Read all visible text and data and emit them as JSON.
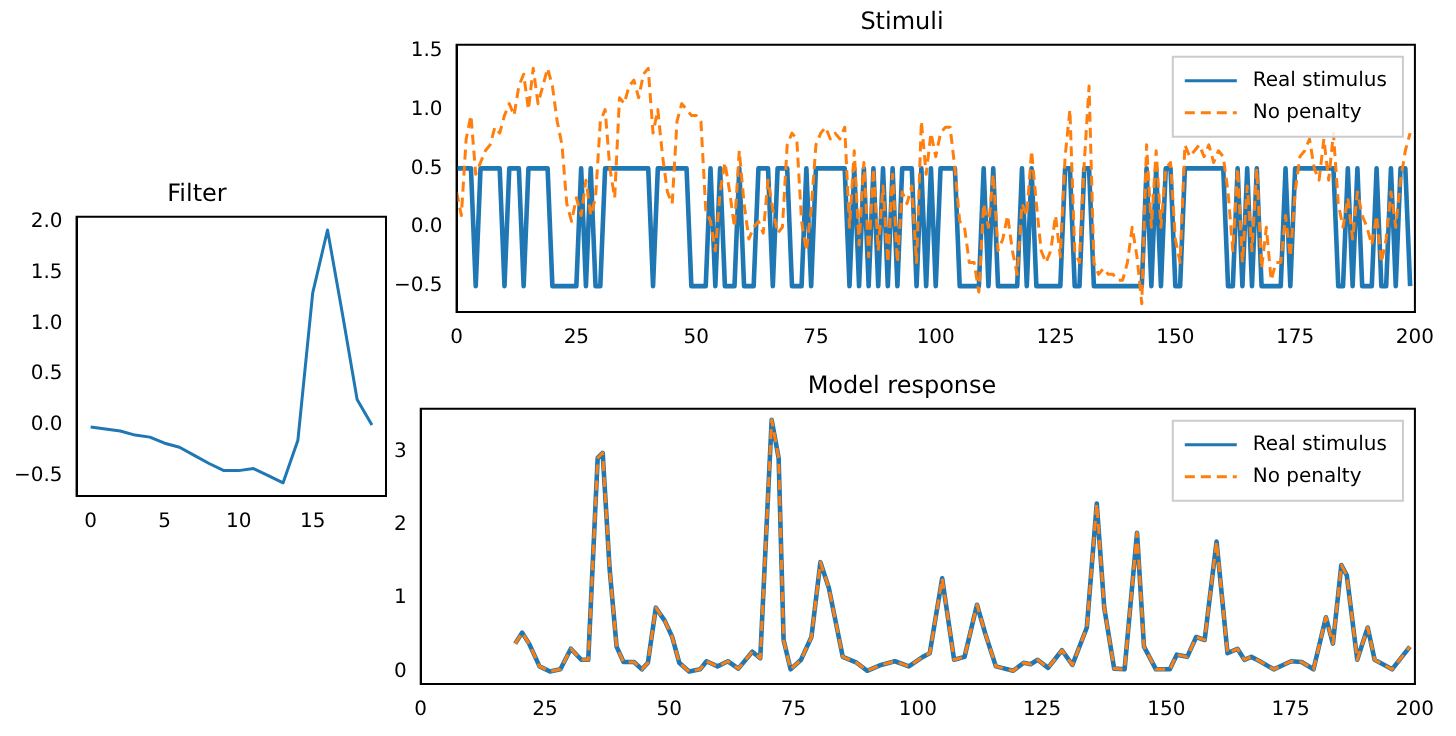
{
  "chart_data": [
    {
      "type": "line",
      "title": "Filter",
      "x": [
        0,
        1,
        2,
        3,
        4,
        5,
        6,
        7,
        8,
        9,
        10,
        11,
        12,
        13,
        14,
        15,
        16,
        17,
        18,
        19
      ],
      "series": [
        {
          "color": "#1f77b4",
          "values": [
            -0.02,
            -0.04,
            -0.06,
            -0.1,
            -0.12,
            -0.18,
            -0.22,
            -0.3,
            -0.38,
            -0.45,
            -0.45,
            -0.43,
            -0.5,
            -0.57,
            -0.15,
            1.3,
            1.92,
            1.1,
            0.25,
            0.0
          ]
        }
      ],
      "xlim": [
        -0.95,
        19.95
      ],
      "xticks": [
        0,
        5,
        10,
        15
      ],
      "ylim": [
        -0.7,
        2.05
      ],
      "yticks": [
        {
          "value": -0.5,
          "label": "−0.5"
        },
        {
          "value": 0,
          "label": "0.0"
        },
        {
          "value": 0.5,
          "label": "0.5"
        },
        {
          "value": 1,
          "label": "1.0"
        },
        {
          "value": 1.5,
          "label": "1.5"
        },
        {
          "value": 2,
          "label": "2.0"
        }
      ],
      "grid": false,
      "legend": false
    },
    {
      "type": "line",
      "title": "Stimuli",
      "legend": "top right",
      "grid": false,
      "x": [
        0,
        1,
        2,
        3,
        4,
        5,
        6,
        7,
        8,
        9,
        10,
        11,
        12,
        13,
        14,
        15,
        16,
        17,
        18,
        19,
        20,
        21,
        22,
        23,
        24,
        25,
        26,
        27,
        28,
        29,
        30,
        31,
        32,
        33,
        34,
        35,
        36,
        37,
        38,
        39,
        40,
        41,
        42,
        43,
        44,
        45,
        46,
        47,
        48,
        49,
        50,
        51,
        52,
        53,
        54,
        55,
        56,
        57,
        58,
        59,
        60,
        61,
        62,
        63,
        64,
        65,
        66,
        67,
        68,
        69,
        70,
        71,
        72,
        73,
        74,
        75,
        76,
        77,
        78,
        79,
        80,
        81,
        82,
        83,
        84,
        85,
        86,
        87,
        88,
        89,
        90,
        91,
        92,
        93,
        94,
        95,
        96,
        97,
        98,
        99,
        100,
        101,
        102,
        103,
        104,
        105,
        106,
        107,
        108,
        109,
        110,
        111,
        112,
        113,
        114,
        115,
        116,
        117,
        118,
        119,
        120,
        121,
        122,
        123,
        124,
        125,
        126,
        127,
        128,
        129,
        130,
        131,
        132,
        133,
        134,
        135,
        136,
        137,
        138,
        139,
        140,
        141,
        142,
        143,
        144,
        145,
        146,
        147,
        148,
        149,
        150,
        151,
        152,
        153,
        154,
        155,
        156,
        157,
        158,
        159,
        160,
        161,
        162,
        163,
        164,
        165,
        166,
        167,
        168,
        169,
        170,
        171,
        172,
        173,
        174,
        175,
        176,
        177,
        178,
        179,
        180,
        181,
        182,
        183,
        184,
        185,
        186,
        187,
        188,
        189,
        190,
        191,
        192,
        193,
        194,
        195,
        196,
        197,
        198,
        199
      ],
      "series": [
        {
          "name": "Real stimulus",
          "color": "#1f77b4",
          "line_style": "solid",
          "values": [
            0.5,
            0.5,
            0.5,
            0.5,
            -0.5,
            0.5,
            0.5,
            0.5,
            0.5,
            0.5,
            -0.5,
            0.5,
            0.5,
            0.5,
            -0.5,
            0.5,
            0.5,
            0.5,
            0.5,
            0.5,
            -0.5,
            -0.5,
            -0.5,
            -0.5,
            -0.5,
            -0.5,
            0.5,
            -0.5,
            0.5,
            -0.5,
            -0.5,
            0.5,
            0.5,
            0.5,
            0.5,
            0.5,
            0.5,
            0.5,
            0.5,
            0.5,
            0.5,
            -0.5,
            0.5,
            0.5,
            0.5,
            0.5,
            0.5,
            0.5,
            0.5,
            -0.5,
            -0.5,
            -0.5,
            -0.5,
            0.5,
            -0.5,
            0.5,
            -0.5,
            -0.5,
            -0.5,
            0.5,
            -0.5,
            -0.5,
            -0.5,
            0.5,
            0.5,
            0.5,
            -0.5,
            0.5,
            0.5,
            0.5,
            -0.5,
            -0.5,
            -0.5,
            0.5,
            -0.5,
            0.5,
            0.5,
            0.5,
            0.5,
            0.5,
            0.5,
            0.5,
            -0.5,
            0.5,
            -0.5,
            0.5,
            -0.5,
            0.5,
            -0.5,
            0.5,
            -0.5,
            0.5,
            -0.5,
            0.5,
            0.5,
            0.5,
            -0.5,
            0.5,
            -0.5,
            0.5,
            -0.5,
            0.5,
            0.5,
            0.5,
            0.5,
            -0.5,
            -0.5,
            -0.5,
            -0.5,
            -0.5,
            0.5,
            -0.5,
            0.5,
            -0.5,
            -0.5,
            -0.5,
            -0.5,
            -0.5,
            0.5,
            -0.5,
            0.5,
            -0.5,
            -0.5,
            -0.5,
            -0.5,
            -0.5,
            -0.5,
            0.5,
            0.5,
            -0.5,
            -0.5,
            0.5,
            0.5,
            -0.5,
            -0.5,
            -0.5,
            -0.5,
            -0.5,
            -0.5,
            -0.5,
            -0.5,
            -0.5,
            -0.5,
            -0.5,
            0.5,
            -0.5,
            0.5,
            -0.5,
            0.5,
            0.5,
            -0.5,
            -0.5,
            0.5,
            0.5,
            0.5,
            0.5,
            0.5,
            0.5,
            0.5,
            0.5,
            0.5,
            -0.5,
            -0.5,
            0.5,
            -0.5,
            0.5,
            -0.5,
            0.5,
            -0.5,
            -0.5,
            -0.5,
            -0.5,
            -0.5,
            0.5,
            -0.5,
            0.5,
            0.5,
            0.5,
            0.5,
            0.5,
            0.5,
            0.5,
            0.5,
            0.5,
            -0.5,
            -0.5,
            0.5,
            -0.5,
            0.5,
            -0.5,
            -0.5,
            -0.5,
            0.5,
            -0.5,
            -0.5,
            0.5,
            -0.5,
            0.5,
            0.5,
            -0.5
          ]
        },
        {
          "name": "No penalty",
          "color": "#ff7f0e",
          "line_style": "dashed",
          "values": [
            0.3,
            0.1,
            0.75,
            0.95,
            0.45,
            0.55,
            0.65,
            0.7,
            0.85,
            0.8,
            0.95,
            1.05,
            0.95,
            1.2,
            1.3,
            1.0,
            1.35,
            1.05,
            1.2,
            1.35,
            1.2,
            0.9,
            0.7,
            0.2,
            0.05,
            0.25,
            0.1,
            0.4,
            0.1,
            0.25,
            0.9,
            1.0,
            0.5,
            0.25,
            1.1,
            1.05,
            1.2,
            1.25,
            1.1,
            1.3,
            1.35,
            0.8,
            1.0,
            0.6,
            0.3,
            0.2,
            0.9,
            1.05,
            1.0,
            0.95,
            0.95,
            0.9,
            0.15,
            0.05,
            -0.2,
            0.3,
            0.55,
            0.3,
            0.0,
            0.65,
            0.2,
            -0.1,
            0.0,
            0.05,
            -0.05,
            0.4,
            0.15,
            -0.05,
            0.0,
            0.7,
            0.8,
            0.75,
            0.05,
            -0.2,
            0.15,
            0.7,
            0.8,
            0.85,
            0.75,
            0.8,
            0.75,
            0.85,
            0.0,
            0.65,
            -0.15,
            0.55,
            -0.25,
            0.5,
            -0.2,
            0.35,
            -0.3,
            0.45,
            -0.3,
            0.3,
            0.2,
            0.35,
            -0.3,
            0.9,
            0.45,
            0.8,
            0.6,
            0.8,
            0.85,
            0.85,
            0.5,
            0.05,
            0.0,
            -0.3,
            -0.3,
            -0.55,
            0.2,
            0.0,
            0.45,
            -0.2,
            -0.1,
            0.1,
            -0.2,
            -0.4,
            0.2,
            0.1,
            0.65,
            0.2,
            -0.2,
            -0.3,
            -0.2,
            0.1,
            -0.25,
            0.6,
            1.0,
            -0.2,
            -0.3,
            0.55,
            1.2,
            -0.3,
            -0.4,
            -0.35,
            -0.4,
            -0.4,
            -0.45,
            -0.45,
            -0.3,
            0.0,
            -0.25,
            -0.65,
            0.7,
            0.0,
            0.65,
            0.0,
            0.5,
            0.55,
            -0.1,
            -0.3,
            0.7,
            0.6,
            0.65,
            0.7,
            0.6,
            0.7,
            0.55,
            0.65,
            0.6,
            0.3,
            -0.2,
            0.5,
            -0.3,
            0.35,
            -0.2,
            0.5,
            -0.35,
            0.0,
            -0.45,
            -0.3,
            -0.3,
            0.1,
            -0.25,
            0.3,
            0.6,
            0.65,
            0.75,
            0.5,
            0.4,
            0.75,
            0.4,
            0.8,
            0.2,
            0.0,
            0.25,
            -0.1,
            0.3,
            0.1,
            0.0,
            -0.15,
            0.1,
            -0.3,
            -0.1,
            0.3,
            0.0,
            0.4,
            0.65,
            0.8
          ]
        }
      ],
      "xlim": [
        0,
        200
      ],
      "xticks": [
        0,
        25,
        50,
        75,
        100,
        125,
        150,
        175,
        200
      ],
      "ylim": [
        -0.72,
        1.55
      ],
      "yticks": [
        {
          "value": -0.5,
          "label": "−0.5"
        },
        {
          "value": 0,
          "label": "0.0"
        },
        {
          "value": 0.5,
          "label": "0.5"
        },
        {
          "value": 1,
          "label": "1.0"
        },
        {
          "value": 1.5,
          "label": "1.5"
        }
      ]
    },
    {
      "type": "line",
      "title": "Model response",
      "legend": "top right",
      "grid": false,
      "series": [
        {
          "name": "Real stimulus",
          "color": "#1f77b4",
          "line_style": "solid",
          "x": [
            19,
            20.4,
            21.8,
            23.9,
            26,
            28.1,
            30.2,
            32.3,
            33.7,
            35.6,
            36.6,
            38,
            39.4,
            40.8,
            42.9,
            44.5,
            45.7,
            47.3,
            49.1,
            50.6,
            52,
            54,
            56.2,
            57.5,
            59.7,
            61.8,
            63.9,
            66.7,
            68.3,
            70.6,
            72,
            73,
            74.4,
            76.5,
            78.6,
            80.4,
            82.1,
            84.9,
            87.7,
            89.8,
            92.6,
            95.4,
            98.2,
            101,
            102.4,
            104.9,
            107.3,
            109.4,
            111.9,
            113.6,
            115.7,
            119.2,
            121.3,
            122.7,
            124.1,
            126.2,
            129,
            131.1,
            134,
            136,
            137.5,
            139.5,
            141.6,
            144.1,
            145.5,
            147.9,
            150.7,
            152.1,
            154.2,
            156,
            157.7,
            160.1,
            162.3,
            164.3,
            165.7,
            167.1,
            168.8,
            171.6,
            175.1,
            177.2,
            179.6,
            182.1,
            183.5,
            185.2,
            186.3,
            188.4,
            190.5,
            191.9,
            195.4,
            199
          ],
          "values": [
            0.38,
            0.53,
            0.38,
            0.07,
            0.0,
            0.03,
            0.31,
            0.16,
            0.16,
            2.91,
            2.98,
            1.4,
            0.34,
            0.13,
            0.13,
            0.03,
            0.12,
            0.87,
            0.69,
            0.47,
            0.12,
            0.0,
            0.03,
            0.14,
            0.07,
            0.14,
            0.04,
            0.27,
            0.18,
            3.43,
            2.91,
            0.43,
            0.03,
            0.16,
            0.47,
            1.49,
            1.14,
            0.2,
            0.12,
            0.01,
            0.09,
            0.14,
            0.07,
            0.2,
            0.25,
            1.27,
            0.16,
            0.2,
            0.91,
            0.51,
            0.07,
            0.01,
            0.12,
            0.1,
            0.16,
            0.05,
            0.29,
            0.09,
            0.6,
            2.29,
            0.87,
            0.04,
            0.03,
            1.89,
            0.34,
            0.03,
            0.03,
            0.23,
            0.2,
            0.47,
            0.43,
            1.77,
            0.25,
            0.31,
            0.16,
            0.2,
            0.14,
            0.03,
            0.14,
            0.13,
            0.03,
            0.74,
            0.38,
            1.45,
            1.31,
            0.16,
            0.6,
            0.16,
            0.03,
            0.34
          ]
        },
        {
          "name": "No penalty",
          "color": "#ff7f0e",
          "line_style": "dashed",
          "x": [
            19,
            20.4,
            21.8,
            23.9,
            26,
            28.1,
            30.2,
            32.3,
            33.7,
            35.6,
            36.6,
            38,
            39.4,
            40.8,
            42.9,
            44.5,
            45.7,
            47.3,
            49.1,
            50.6,
            52,
            54,
            56.2,
            57.5,
            59.7,
            61.8,
            63.9,
            66.7,
            68.3,
            70.6,
            72,
            73,
            74.4,
            76.5,
            78.6,
            80.4,
            82.1,
            84.9,
            87.7,
            89.8,
            92.6,
            95.4,
            98.2,
            101,
            102.4,
            104.9,
            107.3,
            109.4,
            111.9,
            113.6,
            115.7,
            119.2,
            121.3,
            122.7,
            124.1,
            126.2,
            129,
            131.1,
            134,
            136,
            137.5,
            139.5,
            141.6,
            144.1,
            145.5,
            147.9,
            150.7,
            152.1,
            154.2,
            156,
            157.7,
            160.1,
            162.3,
            164.3,
            165.7,
            167.1,
            168.8,
            171.6,
            175.1,
            177.2,
            179.6,
            182.1,
            183.5,
            185.2,
            186.3,
            188.4,
            190.5,
            191.9,
            195.4,
            199
          ],
          "values": [
            0.38,
            0.53,
            0.38,
            0.07,
            0.0,
            0.03,
            0.31,
            0.16,
            0.16,
            2.91,
            2.98,
            1.4,
            0.34,
            0.13,
            0.13,
            0.03,
            0.12,
            0.87,
            0.69,
            0.47,
            0.12,
            0.0,
            0.03,
            0.14,
            0.07,
            0.14,
            0.04,
            0.27,
            0.18,
            3.43,
            2.91,
            0.43,
            0.03,
            0.16,
            0.47,
            1.49,
            1.14,
            0.2,
            0.12,
            0.01,
            0.09,
            0.14,
            0.07,
            0.2,
            0.25,
            1.27,
            0.16,
            0.2,
            0.91,
            0.51,
            0.07,
            0.01,
            0.12,
            0.1,
            0.16,
            0.05,
            0.29,
            0.09,
            0.6,
            2.29,
            0.87,
            0.04,
            0.03,
            1.89,
            0.34,
            0.03,
            0.03,
            0.23,
            0.2,
            0.47,
            0.43,
            1.77,
            0.25,
            0.31,
            0.16,
            0.2,
            0.14,
            0.03,
            0.14,
            0.13,
            0.03,
            0.74,
            0.38,
            1.45,
            1.31,
            0.16,
            0.6,
            0.16,
            0.03,
            0.34
          ]
        }
      ],
      "xlim": [
        0,
        200
      ],
      "xticks": [
        0,
        25,
        50,
        75,
        100,
        125,
        150,
        175,
        200
      ],
      "ylim": [
        -0.17,
        3.58
      ],
      "yticks": [
        0,
        1,
        2,
        3
      ]
    }
  ]
}
